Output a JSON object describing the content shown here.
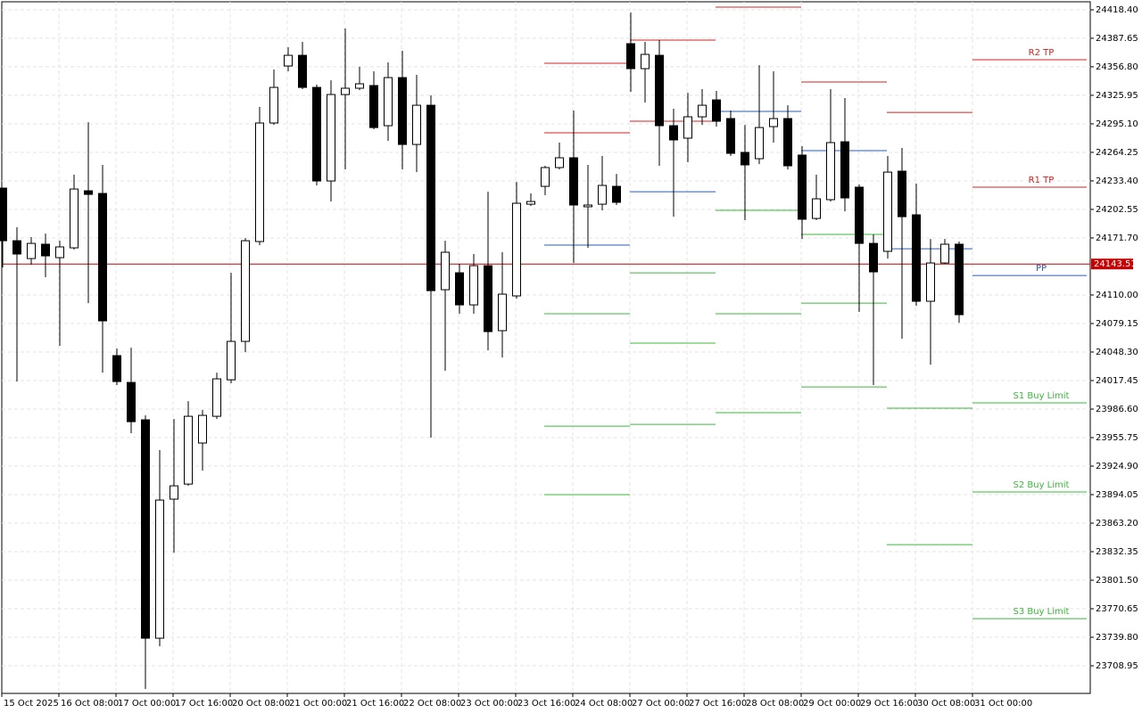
{
  "chart_data": {
    "type": "candlestick",
    "categories": [
      "15 Oct 2025",
      null,
      null,
      null,
      "16 Oct 08:00",
      null,
      null,
      null,
      "17 Oct 00:00",
      null,
      null,
      null,
      "17 Oct 16:00",
      null,
      null,
      null,
      "20 Oct 08:00",
      null,
      null,
      null,
      "21 Oct 00:00",
      null,
      null,
      null,
      "21 Oct 16:00",
      null,
      null,
      null,
      "22 Oct 08:00",
      null,
      null,
      null,
      "23 Oct 00:00",
      null,
      null,
      null,
      "23 Oct 16:00",
      null,
      null,
      null,
      "24 Oct 08:00",
      null,
      null,
      null,
      "27 Oct 00:00",
      null,
      null,
      null,
      "27 Oct 16:00",
      null,
      null,
      null,
      "28 Oct 08:00",
      null,
      null,
      null,
      "29 Oct 00:00",
      null,
      null,
      null,
      "29 Oct 16:00",
      null,
      null,
      null,
      "30 Oct 08:00",
      null,
      null,
      null,
      "31 Oct 00:00"
    ],
    "open": [
      24225.6,
      24168.7,
      24149.4,
      24164.9,
      24150.4,
      24161.0,
      24222.7,
      24219.8,
      24044.4,
      24015.4,
      23975.0,
      23738.8,
      23889.2,
      23905.5,
      23949.9,
      23978.8,
      24018.3,
      24059.8,
      24167.8,
      24296.0,
      24357.7,
      24369.2,
      24334.5,
      24233.3,
      24326.8,
      24333.6,
      24336.5,
      24293.1,
      24345.1,
      24272.8,
      24315.2,
      24115.7,
      24134.0,
      24099.3,
      24141.7,
      24071.4,
      24109.0,
      24208.2,
      24227.5,
      24247.8,
      24258.4,
      24205.4,
      24208.2,
      24227.5,
      24381.8,
      24354.8,
      24369.2,
      24293.1,
      24279.6,
      24302.7,
      24321.0,
      24300.8,
      24264.2,
      24257.4,
      24292.1,
      24300.8,
      24261.3,
      24192.8,
      24213.1,
      24275.7,
      24226.6,
      24165.8,
      24157.2,
      24243.9,
      24196.7,
      24103.2,
      24144.6,
      24164.9,
      null
    ],
    "high": [
      24225.6,
      24183.2,
      24172.6,
      24176.4,
      24168.7,
      24240.1,
      24296.9,
      24250.7,
      24052.1,
      24053.0,
      23979.8,
      23942.2,
      23975.9,
      23995.2,
      23985.6,
      24026.0,
      24134.0,
      24171.6,
      24313.3,
      24353.8,
      24377.9,
      24383.7,
      24337.4,
      24342.2,
      24398.2,
      24356.7,
      24351.9,
      24361.5,
      24374.1,
      24348.0,
      24325.9,
      24168.7,
      24143.7,
      24154.3,
      24221.7,
      24156.2,
      24232.3,
      24219.8,
      24249.7,
      24274.8,
      24309.5,
      24250.7,
      24260.3,
      24241.0,
      24415.5,
      24383.7,
      24385.6,
      24311.4,
      24328.7,
      24332.6,
      24330.7,
      24309.5,
      24294.0,
      24358.6,
      24351.9,
      24315.2,
      24270.9,
      24240.1,
      24332.6,
      24323.0,
      24229.5,
      24175.5,
      24260.3,
      24269.0,
      24230.4,
      24170.6,
      24170.6,
      24167.8,
      null
    ],
    "low": [
      24139.8,
      24016.4,
      24142.7,
      24129.2,
      24055.0,
      24159.1,
      24101.2,
      24026.0,
      24012.6,
      23960.5,
      23683.8,
      23730.1,
      23831.3,
      23903.6,
      23920.0,
      23975.9,
      24014.5,
      24048.2,
      24163.9,
      24294.0,
      24351.9,
      24332.6,
      24228.5,
      24211.1,
      24245.8,
      24331.6,
      24289.2,
      24276.7,
      24245.8,
      24242.9,
      23955.7,
      24028.0,
      24089.7,
      24089.7,
      24050.1,
      24042.4,
      24106.1,
      24206.3,
      24217.9,
      24245.8,
      24144.6,
      24161.0,
      24201.5,
      24207.3,
      24329.7,
      24318.1,
      24249.7,
      24194.7,
      24253.6,
      24294.0,
      24292.1,
      24260.3,
      24190.9,
      24251.6,
      24274.8,
      24245.8,
      24170.6,
      24190.9,
      24211.1,
      24200.5,
      24091.6,
      24012.6,
      24149.4,
      24062.7,
      24098.3,
      24034.7,
      24143.7,
      24080.0,
      null
    ],
    "close": [
      24168.7,
      24154.3,
      24165.8,
      24152.3,
      24162.0,
      24224.6,
      24218.8,
      24082.0,
      24016.4,
      23973.0,
      23738.8,
      23888.2,
      23903.6,
      23978.8,
      23979.8,
      24019.3,
      24059.8,
      24168.7,
      24296.0,
      24334.5,
      24369.2,
      24334.5,
      24233.3,
      24326.8,
      24333.6,
      24338.4,
      24291.1,
      24345.1,
      24272.8,
      24315.2,
      24114.7,
      24156.2,
      24099.3,
      24141.7,
      24070.4,
      24110.9,
      24209.2,
      24211.1,
      24247.8,
      24258.4,
      24207.3,
      24207.3,
      24228.5,
      24210.2,
      24354.8,
      24370.2,
      24293.1,
      24277.7,
      24302.7,
      24315.2,
      24297.9,
      24263.2,
      24250.7,
      24291.1,
      24300.8,
      24249.7,
      24191.9,
      24214.0,
      24274.8,
      24215.0,
      24165.8,
      24135.0,
      24242.9,
      24194.7,
      24103.2,
      24144.6,
      24164.9,
      24088.7,
      null
    ],
    "up_color": "#ffffff",
    "down_color": "#000000",
    "ylim": [
      23679.1,
      24427.1
    ],
    "yticks": [
      {
        "value": 24418.4,
        "label": "24418.40"
      },
      24387.65,
      {
        "value": 24356.8,
        "label": "24356.80"
      },
      24325.95,
      {
        "value": 24295.1,
        "label": "24295.10"
      },
      24264.25,
      {
        "value": 24233.4,
        "label": "24233.40"
      },
      24202.55,
      {
        "value": 24171.7,
        "label": "24171.70"
      },
      {
        "value": 24110,
        "label": "24110.00"
      },
      24079.15,
      {
        "value": 24048.3,
        "label": "24048.30"
      },
      24017.45,
      {
        "value": 23986.6,
        "label": "23986.60"
      },
      23955.75,
      {
        "value": 23924.9,
        "label": "23924.90"
      },
      23894.05,
      {
        "value": 23863.2,
        "label": "23863.20"
      },
      23832.35,
      {
        "value": 23801.5,
        "label": "23801.50"
      },
      23770.65,
      {
        "value": 23739.8,
        "label": "23739.80"
      },
      23708.95
    ],
    "grid": true,
    "current_price": 24143.51,
    "current_price_color": "#c80000",
    "pivot_history": [
      [
        {
          "value": 24360.6,
          "color": "#d42020"
        },
        {
          "value": 24285.4,
          "color": "#d42020"
        },
        {
          "value": 24163.9,
          "color": "#2a5db0"
        },
        {
          "value": 24089.7,
          "color": "#3cb83c"
        },
        {
          "value": 23968.2,
          "color": "#3cb83c"
        },
        {
          "value": 23894.0,
          "color": "#3cb83c"
        }
      ],
      [
        {
          "value": 24385.6,
          "color": "#d42020"
        },
        {
          "value": 24297.9,
          "color": "#d42020"
        },
        {
          "value": 24221.7,
          "color": "#2a5db0"
        },
        {
          "value": 24134.0,
          "color": "#3cb83c"
        },
        {
          "value": 24057.9,
          "color": "#3cb83c"
        },
        {
          "value": 23970.1,
          "color": "#3cb83c"
        }
      ],
      [
        {
          "value": 24421.3,
          "color": "#d42020"
        },
        {
          "value": 24308.5,
          "color": "#2a5db0"
        },
        {
          "value": 24201.5,
          "color": "#3cb83c"
        },
        {
          "value": 24089.7,
          "color": "#3cb83c"
        },
        {
          "value": 23982.7,
          "color": "#3cb83c"
        }
      ],
      [
        {
          "value": 24340.3,
          "color": "#d42020"
        },
        {
          "value": 24266.1,
          "color": "#2a5db0"
        },
        {
          "value": 24175.5,
          "color": "#3cb83c"
        },
        {
          "value": 24101.2,
          "color": "#3cb83c"
        },
        {
          "value": 24010.6,
          "color": "#3cb83c"
        }
      ],
      [
        {
          "value": 24307.5,
          "color": "#d42020"
        },
        {
          "value": 24160.0,
          "color": "#2a5db0"
        },
        {
          "value": 23987.5,
          "color": "#3cb83c"
        },
        {
          "value": 23840.0,
          "color": "#3cb83c"
        }
      ]
    ],
    "pivot_levels": [
      {
        "name": "R2 TP",
        "value": 24364.4,
        "color": "#d42020"
      },
      {
        "name": "R1 TP",
        "value": 24226.6,
        "color": "#d42020"
      },
      {
        "name": "PP",
        "value": 24131.1,
        "color": "#2a5db0"
      },
      {
        "name": "S1 Buy Limit",
        "value": 23993.3,
        "color": "#3cb83c"
      },
      {
        "name": "S2 Buy Limit",
        "value": 23896.9,
        "color": "#3cb83c"
      },
      {
        "name": "S3 Buy Limit",
        "value": 23760.0,
        "color": "#3cb83c"
      }
    ]
  }
}
